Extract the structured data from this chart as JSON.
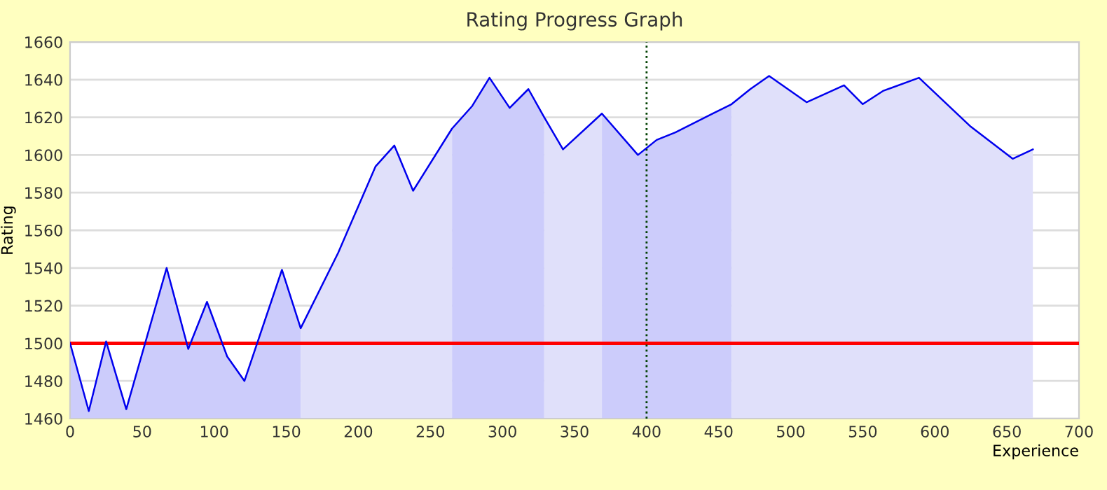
{
  "chart_data": {
    "type": "area",
    "title": "Rating Progress Graph",
    "xlabel": "Experience",
    "ylabel": "Rating",
    "xlim": [
      0,
      700
    ],
    "xticks": [
      0,
      50,
      100,
      150,
      200,
      250,
      300,
      350,
      400,
      450,
      500,
      550,
      600,
      650,
      700
    ],
    "ylim": [
      1460,
      1660
    ],
    "yticks": [
      1460,
      1480,
      1500,
      1520,
      1540,
      1560,
      1580,
      1600,
      1620,
      1640,
      1660
    ],
    "grid": "y",
    "marker": "none",
    "series": [
      {
        "color": "#ccccfb",
        "x": [
          0,
          13,
          25,
          39,
          67,
          82,
          95,
          109,
          121,
          147,
          160
        ],
        "values": [
          1500,
          1464,
          1501,
          1465,
          1540,
          1497,
          1522,
          1493,
          1480,
          1539,
          1508
        ]
      },
      {
        "color": "#e0e0fa",
        "x": [
          160,
          186,
          212,
          225,
          238,
          265
        ],
        "values": [
          1508,
          1548,
          1594,
          1605,
          1581,
          1614
        ]
      },
      {
        "color": "#ccccfb",
        "x": [
          265,
          279,
          291,
          305,
          318,
          329
        ],
        "values": [
          1614,
          1626,
          1641,
          1625,
          1635,
          1620
        ]
      },
      {
        "color": "#e0e0fa",
        "x": [
          329,
          342,
          369
        ],
        "values": [
          1620,
          1603,
          1622
        ]
      },
      {
        "color": "#ccccfb",
        "x": [
          369,
          394,
          407,
          420,
          446,
          459
        ],
        "values": [
          1622,
          1600,
          1608,
          1612,
          1622,
          1627
        ]
      },
      {
        "color": "#e0e0fa",
        "x": [
          459,
          472,
          485,
          511,
          537,
          550,
          564,
          589,
          625,
          654,
          668
        ],
        "values": [
          1627,
          1635,
          1642,
          1628,
          1637,
          1627,
          1634,
          1641,
          1615,
          1598,
          1603
        ]
      },
      {
        "type": "line",
        "color": "#0000ee",
        "x": [
          0,
          13,
          25,
          39,
          67,
          82,
          95,
          109,
          121,
          147,
          160,
          186,
          212,
          225,
          238,
          265,
          279,
          291,
          305,
          318,
          329,
          342,
          369,
          394,
          407,
          420,
          446,
          459,
          472,
          485,
          511,
          537,
          550,
          564,
          589,
          625,
          654,
          668
        ],
        "values": [
          1500,
          1464,
          1501,
          1465,
          1540,
          1497,
          1522,
          1493,
          1480,
          1539,
          1508,
          1548,
          1594,
          1605,
          1581,
          1614,
          1626,
          1641,
          1625,
          1635,
          1620,
          1603,
          1622,
          1600,
          1608,
          1612,
          1622,
          1627,
          1635,
          1642,
          1628,
          1637,
          1627,
          1634,
          1641,
          1615,
          1598,
          1603
        ]
      }
    ],
    "ref_lines": [
      {
        "axis": "y",
        "value": 1500,
        "color": "#ff0000",
        "line_style": "solid"
      },
      {
        "axis": "x",
        "value": 400,
        "color": "#004000",
        "line_style": "dotted"
      }
    ]
  }
}
